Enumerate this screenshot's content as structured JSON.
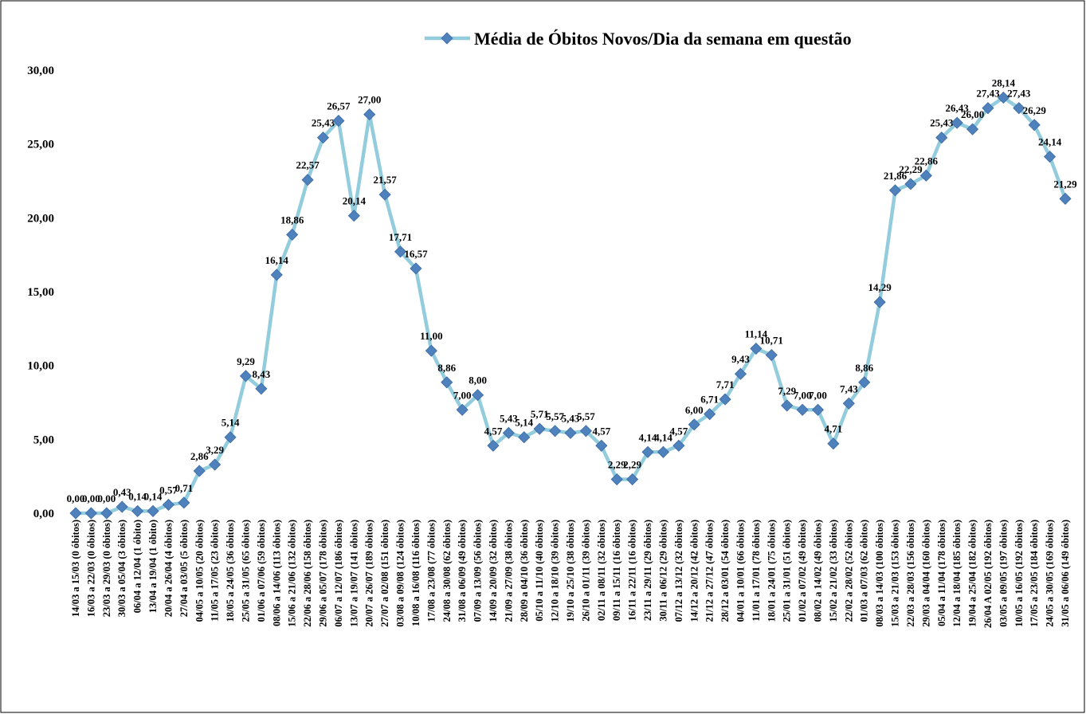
{
  "chart_data": {
    "type": "line",
    "categories": [
      "14/03 a 15/03 (0 óbitos)",
      "16/03 a 22/03 (0 óbitos)",
      "23/03 a 29/03 (0 óbitos)",
      "30/03 a 05/04 (3 óbitos)",
      "06/04 a 12/04 (1 óbito)",
      "13/04 a 19/04 (1 óbito)",
      "20/04 a 26/04 (4 óbitos)",
      "27/04 a 03/05 (5 óbitos)",
      "04/05 a 10/05 (20 óbitos)",
      "11/05 a 17/05 (23 óbitos)",
      "18/05 a 24/05 (36 óbitos)",
      "25/05 a 31/05 (65 óbitos)",
      "01/06 a 07/06 (59 óbitos)",
      "08/06 a 14/06 (113 óbitos)",
      "15/06 a 21/06 (132 óbitos)",
      "22/06 a 28/06 (158 óbitos)",
      "29/06 a 05/07 (178 óbitos)",
      "06/07 a 12/07 (186 óbitos)",
      "13/07 a 19/07 (141 óbitos)",
      "20/07 a 26/07 (189 óbitos)",
      "27/07 a 02/08 (151 óbitos)",
      "03/08 a 09/08 (124 óbitos)",
      "10/08 a 16/08 (116 óbitos)",
      "17/08 a 23/08 (77 óbitos)",
      "24/08 a 30/08 (62 óbitos)",
      "31/08 a 06/09 (49 óbitos)",
      "07/09 a 13/09 (56 óbitos)",
      "14/09 a 20/09 (32 óbitos)",
      "21/09 a 27/09 (38 óbitos)",
      "28/09 a 04/10 (36 óbitos)",
      "05/10 a 11/10 (40 óbitos)",
      "12/10 a 18/10 (39 óbitos)",
      "19/10 a 25/10 (38 óbitos)",
      "26/10 a 01/11 (39 óbitos)",
      "02/11 a 08/11 (32 óbitos)",
      "09/11 a 15/11 (16 óbitos)",
      "16/11 a 22/11 (16 óbitos)",
      "23/11 a 29/11 (29 óbitos)",
      "30/11 a 06/12 (29 óbitos)",
      "07/12 a 13/12 (32 óbitos)",
      "14/12 a 20/12 (42 óbitos)",
      "21/12 a 27/12 (47 óbitos)",
      "28/12 a 03/01 (54 óbitos)",
      "04/01 a 10/01 (66 óbitos)",
      "11/01 a 17/01 (78 óbitos)",
      "18/01 a 24/01 (75 óbitos)",
      "25/01 a 31/01 (51 óbitos)",
      "01/02 a 07/02 (49 óbitos)",
      "08/02 a 14/02 (49 óbitos)",
      "15/02 a 21/02 (33 óbitos)",
      "22/02 a 28/02 (52 óbitos)",
      "01/03 a 07/03 (62 óbitos)",
      "08/03 a 14/03 (100 óbitos)",
      "15/03 a 21/03 (153 óbitos)",
      "22/03 a 28/03 (156 óbitos)",
      "29/03 a 04/04 (160 óbitos)",
      "05/04 a 11/04 (178 óbitos)",
      "12/04 a 18/04 (185 óbitos)",
      "19/04 a 25/04 (182 óbitos)",
      "26/04 A 02/05 (192 óbitos)",
      "03/05 a 09/05 (197 óbitos)",
      "10/05 a 16/05 (192 óbitos)",
      "17/05 a 23/05 (184 óbitos)",
      "24/05 a 30/05 (169 óbitos)",
      "31/05 a 06/06 (149 óbitos)"
    ],
    "series": [
      {
        "name": "Média de Óbitos Novos/Dia da semana em questão",
        "color": "#93cddd",
        "marker_color": "#4f81bd",
        "values": [
          0,
          0,
          0,
          0.43,
          0.14,
          0.14,
          0.57,
          0.71,
          2.86,
          3.29,
          5.14,
          9.29,
          8.43,
          16.14,
          18.86,
          22.57,
          25.43,
          26.57,
          20.14,
          27,
          21.57,
          17.71,
          16.57,
          11,
          8.86,
          7,
          8,
          4.57,
          5.43,
          5.14,
          5.71,
          5.57,
          5.43,
          5.57,
          4.57,
          2.29,
          2.29,
          4.14,
          4.14,
          4.57,
          6,
          6.71,
          7.71,
          9.43,
          11.14,
          10.71,
          7.29,
          7,
          7,
          4.71,
          7.43,
          8.86,
          14.29,
          21.86,
          22.29,
          22.86,
          25.43,
          26.43,
          26,
          27.43,
          28.14,
          27.43,
          26.29,
          24.14,
          21.29
        ],
        "value_labels": [
          "0,00",
          "0,00",
          "0,00",
          "0,43",
          "0,14",
          "0,14",
          "0,57",
          "0,71",
          "2,86",
          "3,29",
          "5,14",
          "9,29",
          "8,43",
          "16,14",
          "18,86",
          "22,57",
          "25,43",
          "26,57",
          "20,14",
          "27,00",
          "21,57",
          "17,71",
          "16,57",
          "11,00",
          "8,86",
          "7,00",
          "8,00",
          "4,57",
          "5,43",
          "5,14",
          "5,71",
          "5,57",
          "5,43",
          "5,57",
          "4,57",
          "2,29",
          "2,29",
          "4,14",
          "4,14",
          "4,57",
          "6,00",
          "6,71",
          "7,71",
          "9,43",
          "11,14",
          "10,71",
          "7,29",
          "7,00",
          "7,00",
          "4,71",
          "7,43",
          "8,86",
          "14,29",
          "21,86",
          "22,29",
          "22,86",
          "25,43",
          "26,43",
          "26,00",
          "27,43",
          "28,14",
          "27,43",
          "26,29",
          "24,14",
          "21,29"
        ]
      }
    ],
    "ylim": [
      0,
      30
    ],
    "yticks": [
      {
        "value": 0,
        "label": "0,00"
      },
      {
        "value": 5,
        "label": "5,00"
      },
      {
        "value": 10,
        "label": "10,00"
      },
      {
        "value": 15,
        "label": "15,00"
      },
      {
        "value": 20,
        "label": "20,00"
      },
      {
        "value": 25,
        "label": "25,00"
      },
      {
        "value": 30,
        "label": "30,00"
      }
    ],
    "legend": "top"
  }
}
